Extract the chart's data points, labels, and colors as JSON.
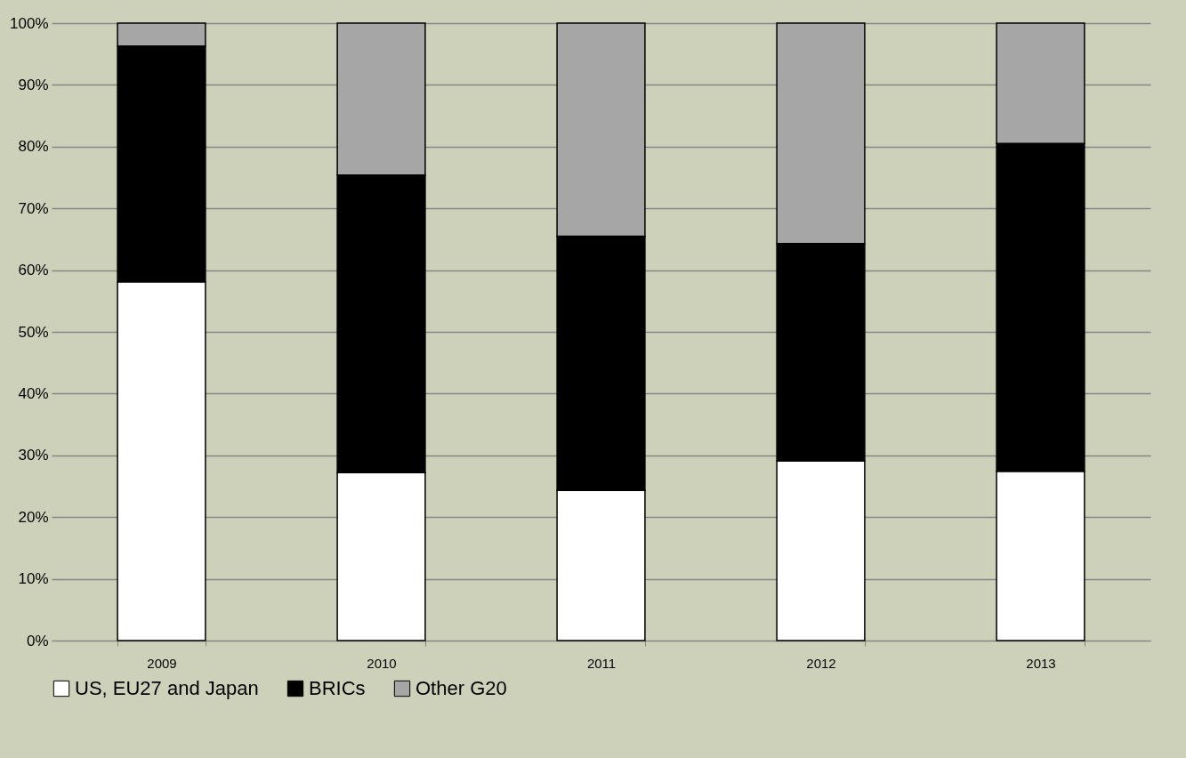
{
  "chart_data": {
    "type": "bar",
    "stacked": true,
    "categories": [
      "2009",
      "2010",
      "2011",
      "2012",
      "2013"
    ],
    "series": [
      {
        "name": "US, EU27 and Japan",
        "color": "#ffffff",
        "values": [
          58.1,
          27.2,
          24.3,
          29.1,
          27.4
        ]
      },
      {
        "name": "BRICs",
        "color": "#000000",
        "values": [
          38.2,
          48.2,
          41.2,
          35.2,
          53.1
        ]
      },
      {
        "name": "Other G20",
        "color": "#a6a6a6",
        "values": [
          3.7,
          24.6,
          34.5,
          35.7,
          19.5
        ]
      }
    ],
    "ylim": [
      0,
      100
    ],
    "yticks": [
      {
        "value": 0,
        "label": "0%"
      },
      {
        "value": 10,
        "label": "10%"
      },
      {
        "value": 20,
        "label": "20%"
      },
      {
        "value": 30,
        "label": "30%"
      },
      {
        "value": 40,
        "label": "40%"
      },
      {
        "value": 50,
        "label": "50%"
      },
      {
        "value": 60,
        "label": "60%"
      },
      {
        "value": 70,
        "label": "70%"
      },
      {
        "value": 80,
        "label": "80%"
      },
      {
        "value": 90,
        "label": "90%"
      },
      {
        "value": 100,
        "label": "100%"
      }
    ],
    "grid": "y",
    "legend": "bottom"
  }
}
